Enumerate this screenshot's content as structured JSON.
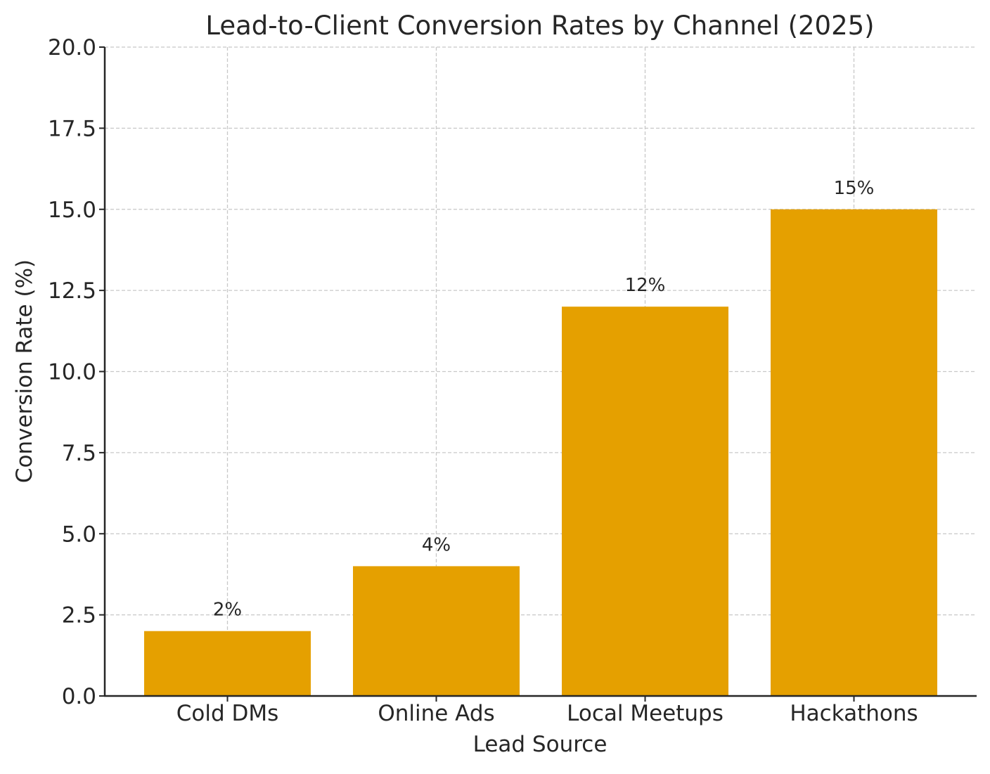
{
  "chart_data": {
    "type": "bar",
    "title": "Lead-to-Client Conversion Rates by Channel (2025)",
    "xlabel": "Lead Source",
    "ylabel": "Conversion Rate (%)",
    "categories": [
      "Cold DMs",
      "Online Ads",
      "Local Meetups",
      "Hackathons"
    ],
    "values": [
      2,
      4,
      12,
      15
    ],
    "value_labels": [
      "2%",
      "4%",
      "12%",
      "15%"
    ],
    "ylim": [
      0,
      20
    ],
    "yticks": [
      0,
      2.5,
      5,
      7.5,
      10,
      12.5,
      15,
      17.5,
      20
    ],
    "ytick_labels": [
      "0.0",
      "2.5",
      "5.0",
      "7.5",
      "10.0",
      "12.5",
      "15.0",
      "17.5",
      "20.0"
    ],
    "grid": true,
    "grid_style": "dashed",
    "bar_color": "#E5A000",
    "text_color": "#262626",
    "grid_color": "#C8C8C8",
    "axis_color": "#262626"
  }
}
